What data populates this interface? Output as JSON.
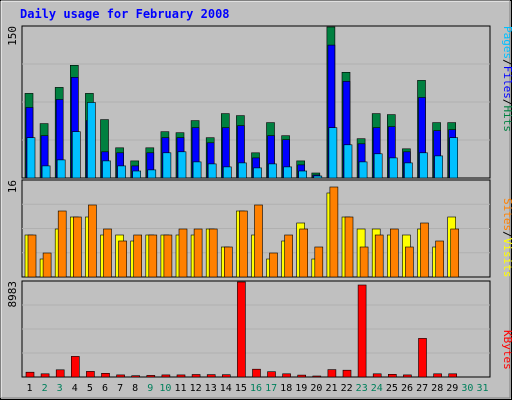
{
  "chart_data": {
    "type": "bar",
    "title": "Daily usage for February 2008",
    "categories": [
      "1",
      "2",
      "3",
      "4",
      "5",
      "6",
      "7",
      "8",
      "9",
      "10",
      "11",
      "12",
      "13",
      "14",
      "15",
      "16",
      "17",
      "18",
      "19",
      "20",
      "21",
      "22",
      "23",
      "24",
      "25",
      "26",
      "27",
      "28",
      "29",
      "30",
      "31"
    ],
    "weekend_days": [
      "2",
      "3",
      "9",
      "10",
      "16",
      "17",
      "23",
      "24",
      "30",
      "31"
    ],
    "panels": {
      "top": {
        "max_label": "150",
        "ylim": [
          0,
          150
        ],
        "legend": [
          "Pages",
          "/",
          "Files",
          "/",
          "Hits"
        ],
        "series": [
          {
            "name": "Hits",
            "color": "#008040",
            "values": [
              84,
              54,
              90,
              112,
              84,
              58,
              30,
              17,
              30,
              46,
              45,
              57,
              40,
              64,
              62,
              25,
              55,
              42,
              17,
              5,
              150,
              105,
              39,
              64,
              63,
              29,
              97,
              55,
              55
            ]
          },
          {
            "name": "Files",
            "color": "#0000ff",
            "values": [
              70,
              42,
              78,
              100,
              57,
              26,
              25,
              12,
              25,
              40,
              40,
              50,
              35,
              50,
              52,
              20,
              42,
              38,
              13,
              3,
              132,
              96,
              34,
              50,
              51,
              26,
              80,
              47,
              48
            ]
          },
          {
            "name": "Pages",
            "color": "#00c0ff",
            "values": [
              40,
              12,
              18,
              46,
              75,
              17,
              12,
              7,
              8,
              25,
              26,
              16,
              14,
              11,
              15,
              10,
              14,
              11,
              7,
              2,
              50,
              33,
              16,
              24,
              20,
              15,
              25,
              22,
              40
            ]
          }
        ]
      },
      "middle": {
        "max_label": "16",
        "ylim": [
          0,
          16
        ],
        "legend": [
          "Sites",
          "/",
          "Visits"
        ],
        "series": [
          {
            "name": "Visits",
            "color": "#ffff00",
            "values": [
              7,
              3,
              8,
              10,
              10,
              7,
              7,
              6,
              7,
              7,
              7,
              7,
              8,
              5,
              11,
              7,
              3,
              6,
              9,
              3,
              14,
              10,
              8,
              8,
              7,
              7,
              8,
              5,
              10
            ]
          },
          {
            "name": "Sites",
            "color": "#ff8000",
            "values": [
              7,
              4,
              11,
              10,
              12,
              8,
              6,
              7,
              7,
              7,
              8,
              8,
              8,
              5,
              11,
              12,
              4,
              7,
              8,
              5,
              15,
              10,
              5,
              7,
              8,
              5,
              9,
              6,
              8
            ]
          }
        ]
      },
      "bottom": {
        "max_label": "8983",
        "ylim": [
          0,
          8983
        ],
        "legend": [
          "KBytes"
        ],
        "series": [
          {
            "name": "KBytes",
            "color": "#ff0000",
            "values": [
              450,
              300,
              680,
              1950,
              530,
              350,
              200,
              120,
              150,
              200,
              200,
              240,
              230,
              220,
              8983,
              740,
              500,
              300,
              180,
              90,
              700,
              640,
              8700,
              300,
              260,
              200,
              3650,
              300,
              300
            ]
          }
        ]
      }
    }
  },
  "colors": {
    "frame_bg": "#c0c0c0",
    "title_color": "#0000ff",
    "weekday_label": "#000000",
    "weekend_label": "#00805c"
  }
}
